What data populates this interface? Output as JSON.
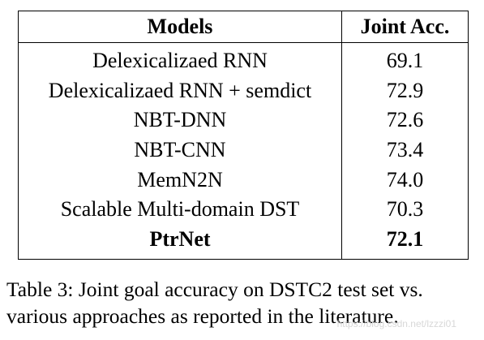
{
  "table": {
    "headers": [
      "Models",
      "Joint Acc."
    ],
    "rows": [
      {
        "model": "Delexicalizaed RNN",
        "acc": "69.1",
        "bold": false
      },
      {
        "model": "Delexicalizaed RNN + semdict",
        "acc": "72.9",
        "bold": false
      },
      {
        "model": "NBT-DNN",
        "acc": "72.6",
        "bold": false
      },
      {
        "model": "NBT-CNN",
        "acc": "73.4",
        "bold": false
      },
      {
        "model": "MemN2N",
        "acc": "74.0",
        "bold": false
      },
      {
        "model": "Scalable Multi-domain DST",
        "acc": "70.3",
        "bold": false
      },
      {
        "model": "PtrNet",
        "acc": "72.1",
        "bold": true
      }
    ]
  },
  "caption": {
    "label": "Table 3:",
    "text": "Joint goal accuracy on DSTC2 test set vs. various approaches as reported in the literature."
  },
  "watermark": "https://blog.csdn.net/lzzzi01"
}
